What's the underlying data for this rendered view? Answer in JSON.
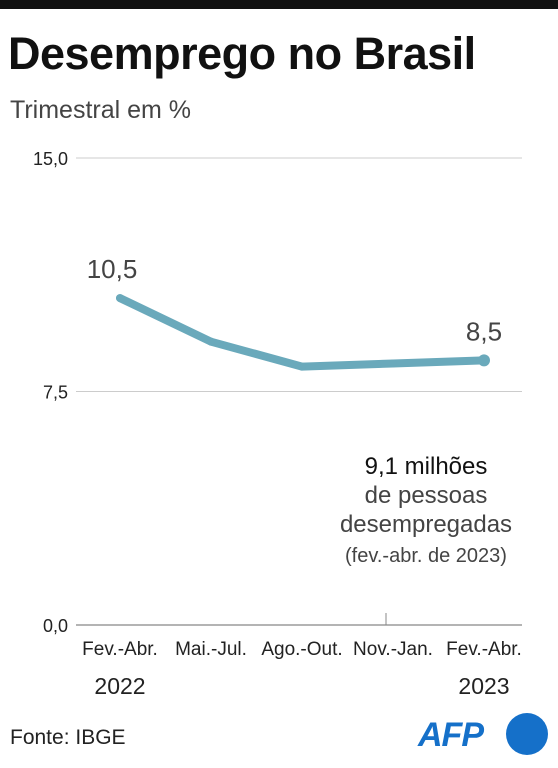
{
  "title": "Desemprego no Brasil",
  "subtitle": "Trimestral em %",
  "source": "Fonte: IBGE",
  "logo": "AFP",
  "annotation": {
    "headline": "9,1 milhões",
    "line2": "de pessoas",
    "line3": "desempregadas",
    "note": "(fev.-abr. de 2023)"
  },
  "colors": {
    "line": "#6aa9bb",
    "logo": "#1570c9",
    "grid": "#cccccc"
  },
  "chart_data": {
    "type": "line",
    "categories": [
      "Fev.-Abr.",
      "Mai.-Jul.",
      "Ago.-Out.",
      "Nov.-Jan.",
      "Fev.-Abr."
    ],
    "year_labels": [
      "2022",
      "",
      "",
      "",
      "2023"
    ],
    "series": [
      {
        "values": [
          10.5,
          9.1,
          8.3,
          8.4,
          8.5
        ]
      }
    ],
    "point_labels": [
      {
        "index": 0,
        "text": "10,5"
      },
      {
        "index": 4,
        "text": "8,5"
      }
    ],
    "yticks": [
      {
        "value": 15.0,
        "label": "15,0"
      },
      {
        "value": 7.5,
        "label": "7,5"
      },
      {
        "value": 0.0,
        "label": "0,0"
      }
    ],
    "ylim": [
      0,
      15
    ],
    "grid": true
  }
}
